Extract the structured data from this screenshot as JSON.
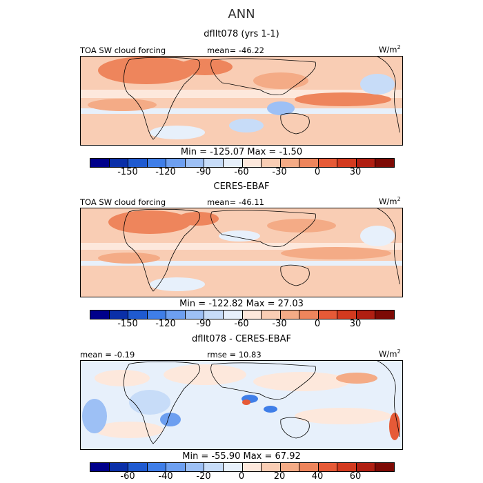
{
  "title": "ANN",
  "panels": [
    {
      "name": "model",
      "heading": "dfllt078 (yrs 1-1)",
      "left_label": "TOA SW cloud forcing",
      "stat_label": "mean= -46.22",
      "units": "W/m",
      "units_sup": "2",
      "minmax": "Min = -125.07  Max = -1.50",
      "colorbar_ticks": [
        "-150",
        "-120",
        "-90",
        "-60",
        "-30",
        "0",
        "30"
      ]
    },
    {
      "name": "obs",
      "heading": "CERES-EBAF",
      "left_label": "TOA SW cloud forcing",
      "stat_label": "mean= -46.11",
      "units": "W/m",
      "units_sup": "2",
      "minmax": "Min = -122.82  Max =  27.03",
      "colorbar_ticks": [
        "-150",
        "-120",
        "-90",
        "-60",
        "-30",
        "0",
        "30"
      ]
    },
    {
      "name": "diff",
      "heading": "dfllt078 - CERES-EBAF",
      "left_label": "mean = -0.19",
      "stat_label": "rmse = 10.83",
      "units": "W/m",
      "units_sup": "2",
      "minmax": "Min = -55.90  Max =  67.92",
      "colorbar_ticks": [
        "-60",
        "-40",
        "-20",
        "0",
        "20",
        "40",
        "60"
      ]
    }
  ],
  "colors": {
    "scale": [
      "#00008b",
      "#0a2fa8",
      "#1f5ad0",
      "#3f7ee8",
      "#6d9ff0",
      "#9dc0f5",
      "#c7dcf8",
      "#e7f0fb",
      "#fde8dc",
      "#f9cdb4",
      "#f4ab86",
      "#ee855c",
      "#e65a37",
      "#d33a1f",
      "#b01f12",
      "#7d0a05"
    ],
    "ocean_light": "#f3d2c0",
    "land_line": "#000000"
  },
  "chart_data": [
    {
      "type": "heatmap",
      "title": "dfllt078 (yrs 1-1)",
      "variable": "TOA SW cloud forcing",
      "units": "W/m2",
      "mean": -46.22,
      "min": -125.07,
      "max": -1.5,
      "colorbar_levels": [
        -165,
        -150,
        -135,
        -120,
        -105,
        -90,
        -75,
        -60,
        -45,
        -30,
        -15,
        0,
        15,
        30,
        45,
        60
      ],
      "colorbar_ticks": [
        -150,
        -120,
        -90,
        -60,
        -30,
        0,
        30
      ]
    },
    {
      "type": "heatmap",
      "title": "CERES-EBAF",
      "variable": "TOA SW cloud forcing",
      "units": "W/m2",
      "mean": -46.11,
      "min": -122.82,
      "max": 27.03,
      "colorbar_levels": [
        -165,
        -150,
        -135,
        -120,
        -105,
        -90,
        -75,
        -60,
        -45,
        -30,
        -15,
        0,
        15,
        30,
        45,
        60
      ],
      "colorbar_ticks": [
        -150,
        -120,
        -90,
        -60,
        -30,
        0,
        30
      ]
    },
    {
      "type": "heatmap",
      "title": "dfllt078 - CERES-EBAF",
      "units": "W/m2",
      "mean": -0.19,
      "rmse": 10.83,
      "min": -55.9,
      "max": 67.92,
      "colorbar_levels": [
        -70,
        -60,
        -50,
        -40,
        -30,
        -20,
        -10,
        0,
        10,
        20,
        30,
        40,
        50,
        60,
        70
      ],
      "colorbar_ticks": [
        -60,
        -40,
        -20,
        0,
        20,
        40,
        60
      ]
    }
  ]
}
